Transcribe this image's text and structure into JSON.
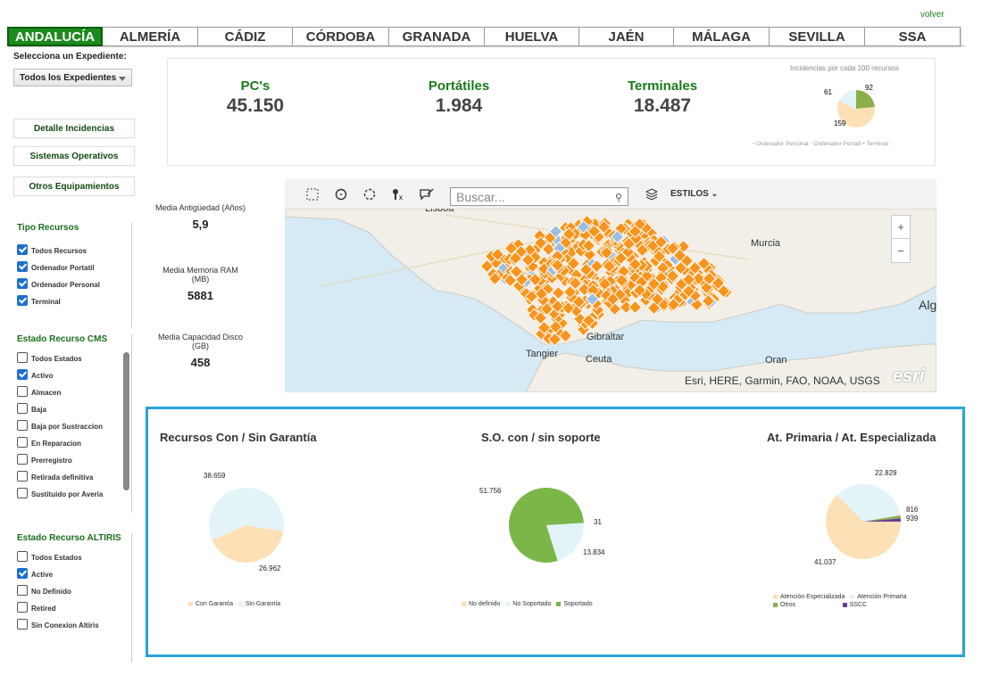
{
  "header": {
    "volver": "volver"
  },
  "tabs": [
    "ANDALUCÍA",
    "ALMERÍA",
    "CÁDIZ",
    "CÓRDOBA",
    "GRANADA",
    "HUELVA",
    "JAÉN",
    "MÁLAGA",
    "SEVILLA",
    "SSA"
  ],
  "sidebar": {
    "expediente_label": "Selecciona un Expediente:",
    "expediente_value": "Todos los Expedientes",
    "buttons": [
      "Detalle Incidencias",
      "Sistemas Operativos",
      "Otros Equipamientos"
    ],
    "tipo_recursos": {
      "title": "Tipo Recursos",
      "items": [
        {
          "label": "Todos Recursos",
          "checked": true
        },
        {
          "label": "Ordenador Portatil",
          "checked": true
        },
        {
          "label": "Ordenador Personal",
          "checked": true
        },
        {
          "label": "Terminal",
          "checked": true
        }
      ]
    },
    "estado_cms": {
      "title": "Estado Recurso CMS",
      "items": [
        {
          "label": "Todos Estados",
          "checked": false
        },
        {
          "label": "Activo",
          "checked": true
        },
        {
          "label": "Almacen",
          "checked": false
        },
        {
          "label": "Baja",
          "checked": false
        },
        {
          "label": "Baja por Sustraccion",
          "checked": false
        },
        {
          "label": "En Reparacion",
          "checked": false
        },
        {
          "label": "Prerregistro",
          "checked": false
        },
        {
          "label": "Retirada definitiva",
          "checked": false
        },
        {
          "label": "Sustituido por Averia",
          "checked": false
        }
      ]
    },
    "estado_altiris": {
      "title": "Estado Recurso ALTIRIS",
      "items": [
        {
          "label": "Todos Estados",
          "checked": false
        },
        {
          "label": "Active",
          "checked": true
        },
        {
          "label": "No Definido",
          "checked": false
        },
        {
          "label": "Retired",
          "checked": false
        },
        {
          "label": "Sin Conexion Altiris",
          "checked": false
        }
      ]
    }
  },
  "kpis": [
    {
      "label": "PC's",
      "value": "45.150"
    },
    {
      "label": "Portátiles",
      "value": "1.984"
    },
    {
      "label": "Terminales",
      "value": "18.487"
    }
  ],
  "incidencias": {
    "title": "Incidencias por cada 100 recursos",
    "legend": [
      "Ordenador Personal",
      "Ordenador Portatil",
      "Terminal"
    ],
    "labels": [
      "61",
      "92",
      "159"
    ]
  },
  "stats": [
    {
      "label": "Media Antigüedad (Años)",
      "value": "5,9"
    },
    {
      "label": "Media Memoria RAM (MB)",
      "value": "5881"
    },
    {
      "label": "Media Capacidad Disco (GB)",
      "value": "458"
    }
  ],
  "map": {
    "search_placeholder": "Buscar...",
    "estilos": "ESTILOS",
    "attribution": "Esri, HERE, Garmin, FAO, NOAA, USGS",
    "logo": "esri",
    "places": [
      "Lisboa",
      "Murcia",
      "Alg",
      "Gibraltar",
      "Tangier",
      "Ceuta",
      "Oran"
    ]
  },
  "chart_data": [
    {
      "type": "pie",
      "title": "Recursos Con / Sin Garantía",
      "categories": [
        "Con Garantía",
        "Sin Garantía"
      ],
      "values": [
        26962,
        38659
      ],
      "labels": [
        "26.962",
        "38.659"
      ],
      "colors": [
        "#fde0b6",
        "#e3f4f9"
      ]
    },
    {
      "type": "pie",
      "title": "S.O. con / sin soporte",
      "categories": [
        "No definido",
        "No Soportado",
        "Soportado"
      ],
      "values": [
        31,
        13834,
        51756
      ],
      "labels": [
        "31",
        "13.834",
        "51.756"
      ],
      "colors": [
        "#fde0b6",
        "#e3f4f9",
        "#7ab648"
      ]
    },
    {
      "type": "pie",
      "title": "At. Primaria / At. Especializada",
      "categories": [
        "Atención Especializada",
        "Atención Primaria",
        "Otros",
        "SSCC"
      ],
      "values": [
        41037,
        22829,
        816,
        939
      ],
      "labels": [
        "41.037",
        "22.829",
        "816",
        "939"
      ],
      "colors": [
        "#fde0b6",
        "#e3f4f9",
        "#8bb04a",
        "#6a3d9a"
      ]
    }
  ],
  "colors": {
    "accent": "#1c8a1c",
    "marker": "#f7941d",
    "panel_border": "#28a4d8"
  }
}
